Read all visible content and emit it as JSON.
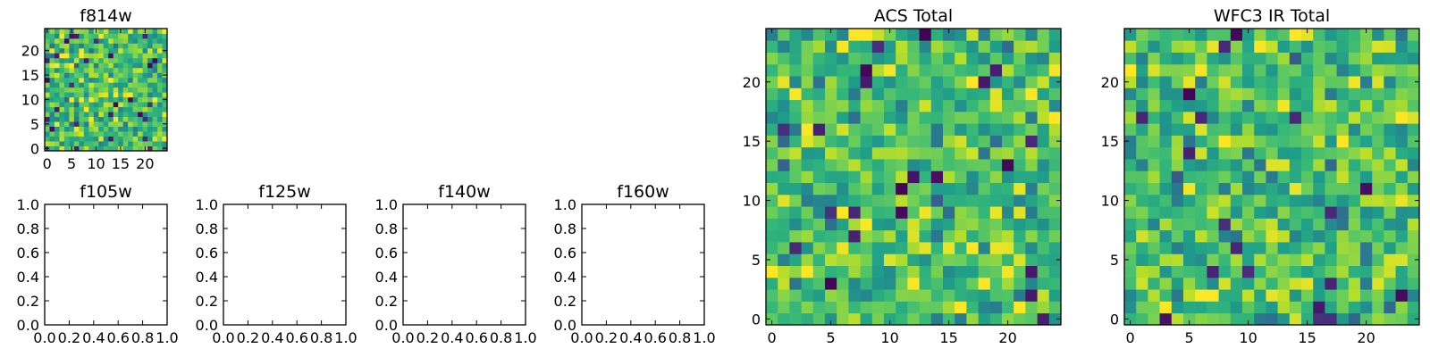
{
  "chart_data": [
    {
      "id": "f814w",
      "type": "heatmap",
      "title": "f814w",
      "colormap": "viridis",
      "grid_size": 25,
      "xlim": [
        -0.5,
        24.5
      ],
      "ylim": [
        -0.5,
        24.5
      ],
      "xticks": [
        0,
        5,
        10,
        15,
        20
      ],
      "xticklabels": [
        "0",
        "5",
        "10",
        "15",
        "20"
      ],
      "yticks": [
        0,
        5,
        10,
        15,
        20
      ],
      "yticklabels": [
        "0",
        "5",
        "10",
        "15",
        "20"
      ],
      "values_seed": 814
    },
    {
      "id": "f105w",
      "type": "empty",
      "title": "f105w",
      "xlim": [
        0,
        1
      ],
      "ylim": [
        0,
        1
      ],
      "xticks": [
        0,
        0.2,
        0.4,
        0.6,
        0.8,
        1.0
      ],
      "xticklabels": [
        "0.0",
        "0.2",
        "0.4",
        "0.6",
        "0.8",
        "1.0"
      ],
      "yticks": [
        0,
        0.2,
        0.4,
        0.6,
        0.8,
        1.0
      ],
      "yticklabels": [
        "0.0",
        "0.2",
        "0.4",
        "0.6",
        "0.8",
        "1.0"
      ]
    },
    {
      "id": "f125w",
      "type": "empty",
      "title": "f125w",
      "xlim": [
        0,
        1
      ],
      "ylim": [
        0,
        1
      ],
      "xticks": [
        0,
        0.2,
        0.4,
        0.6,
        0.8,
        1.0
      ],
      "xticklabels": [
        "0.0",
        "0.2",
        "0.4",
        "0.6",
        "0.8",
        "1.0"
      ],
      "yticks": [
        0,
        0.2,
        0.4,
        0.6,
        0.8,
        1.0
      ],
      "yticklabels": [
        "0.0",
        "0.2",
        "0.4",
        "0.6",
        "0.8",
        "1.0"
      ]
    },
    {
      "id": "f140w",
      "type": "empty",
      "title": "f140w",
      "xlim": [
        0,
        1
      ],
      "ylim": [
        0,
        1
      ],
      "xticks": [
        0,
        0.2,
        0.4,
        0.6,
        0.8,
        1.0
      ],
      "xticklabels": [
        "0.0",
        "0.2",
        "0.4",
        "0.6",
        "0.8",
        "1.0"
      ],
      "yticks": [
        0,
        0.2,
        0.4,
        0.6,
        0.8,
        1.0
      ],
      "yticklabels": [
        "0.0",
        "0.2",
        "0.4",
        "0.6",
        "0.8",
        "1.0"
      ]
    },
    {
      "id": "f160w",
      "type": "empty",
      "title": "f160w",
      "xlim": [
        0,
        1
      ],
      "ylim": [
        0,
        1
      ],
      "xticks": [
        0,
        0.2,
        0.4,
        0.6,
        0.8,
        1.0
      ],
      "xticklabels": [
        "0.0",
        "0.2",
        "0.4",
        "0.6",
        "0.8",
        "1.0"
      ],
      "yticks": [
        0,
        0.2,
        0.4,
        0.6,
        0.8,
        1.0
      ],
      "yticklabels": [
        "0.0",
        "0.2",
        "0.4",
        "0.6",
        "0.8",
        "1.0"
      ]
    },
    {
      "id": "acs_total",
      "type": "heatmap",
      "title": "ACS Total",
      "colormap": "viridis",
      "grid_size": 25,
      "xlim": [
        -0.5,
        24.5
      ],
      "ylim": [
        -0.5,
        24.5
      ],
      "xticks": [
        0,
        5,
        10,
        15,
        20
      ],
      "xticklabels": [
        "0",
        "5",
        "10",
        "15",
        "20"
      ],
      "yticks": [
        0,
        5,
        10,
        15,
        20
      ],
      "yticklabels": [
        "0",
        "5",
        "10",
        "15",
        "20"
      ],
      "values_seed": 1234
    },
    {
      "id": "wfc3_ir_total",
      "type": "heatmap",
      "title": "WFC3 IR Total",
      "colormap": "viridis",
      "grid_size": 25,
      "xlim": [
        -0.5,
        24.5
      ],
      "ylim": [
        -0.5,
        24.5
      ],
      "xticks": [
        0,
        5,
        10,
        15,
        20
      ],
      "xticklabels": [
        "0",
        "5",
        "10",
        "15",
        "20"
      ],
      "yticks": [
        0,
        5,
        10,
        15,
        20
      ],
      "yticklabels": [
        "0",
        "5",
        "10",
        "15",
        "20"
      ],
      "values_seed": 5678
    }
  ]
}
